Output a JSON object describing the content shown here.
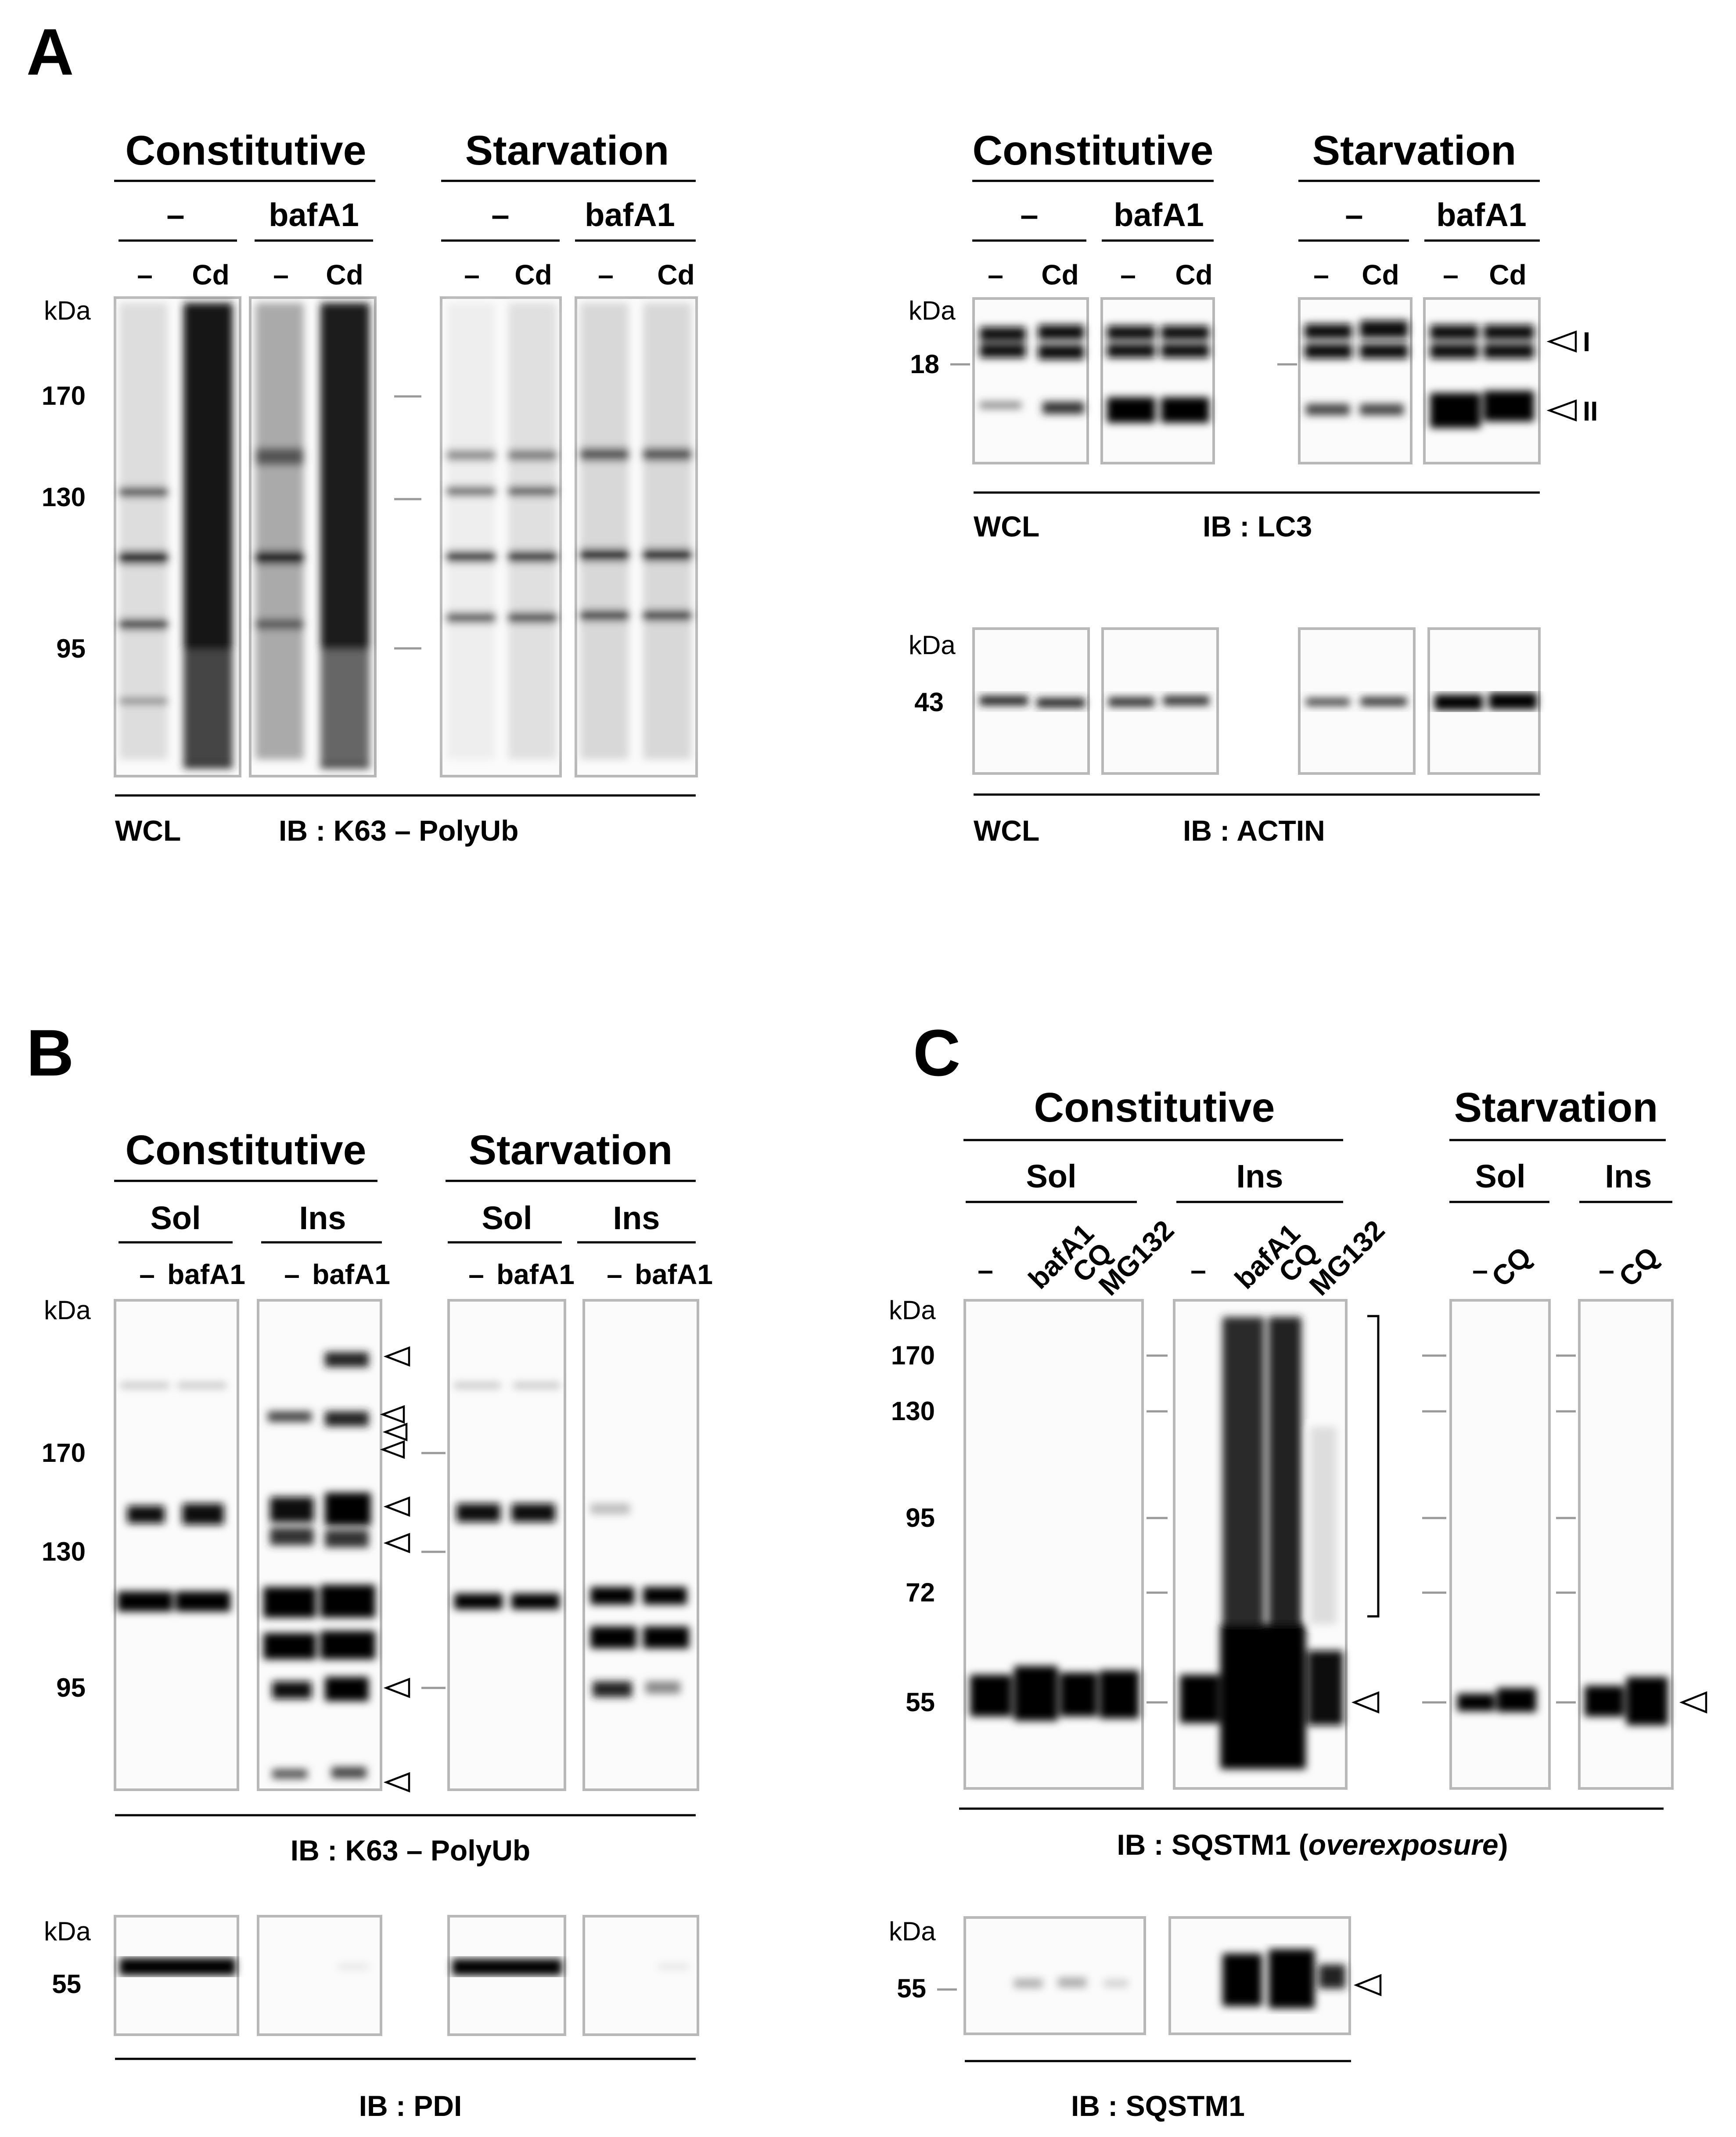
{
  "panels": {
    "a": "A",
    "b": "B",
    "c": "C"
  },
  "conditions": {
    "constitutive": "Constitutive",
    "starvation": "Starvation"
  },
  "treatments": {
    "none": "–",
    "bafa1": "bafA1",
    "bafa1_b": "bafA1",
    "cd": "Cd",
    "cq": "CQ",
    "mg132": "MG132"
  },
  "fractions": {
    "sol": "Sol",
    "ins": "Ins"
  },
  "unit": "kDa",
  "mw": {
    "m170": "170",
    "m130": "130",
    "m95": "95",
    "m72": "72",
    "m55": "55",
    "m43": "43",
    "m18": "18"
  },
  "lc3_forms": {
    "i": "I",
    "ii": "II"
  },
  "footers": {
    "wcl": "WCL",
    "ib_k63": "IB : K63 – PolyUb",
    "ib_lc3": "IB : LC3",
    "ib_actin": "IB : ACTIN",
    "ib_pdi": "IB : PDI",
    "ib_sqstm1_over_pre": "IB : SQSTM1 (",
    "ib_sqstm1_over_em": "overexposure",
    "ib_sqstm1_over_post": ")",
    "ib_sqstm1": "IB : SQSTM1"
  }
}
